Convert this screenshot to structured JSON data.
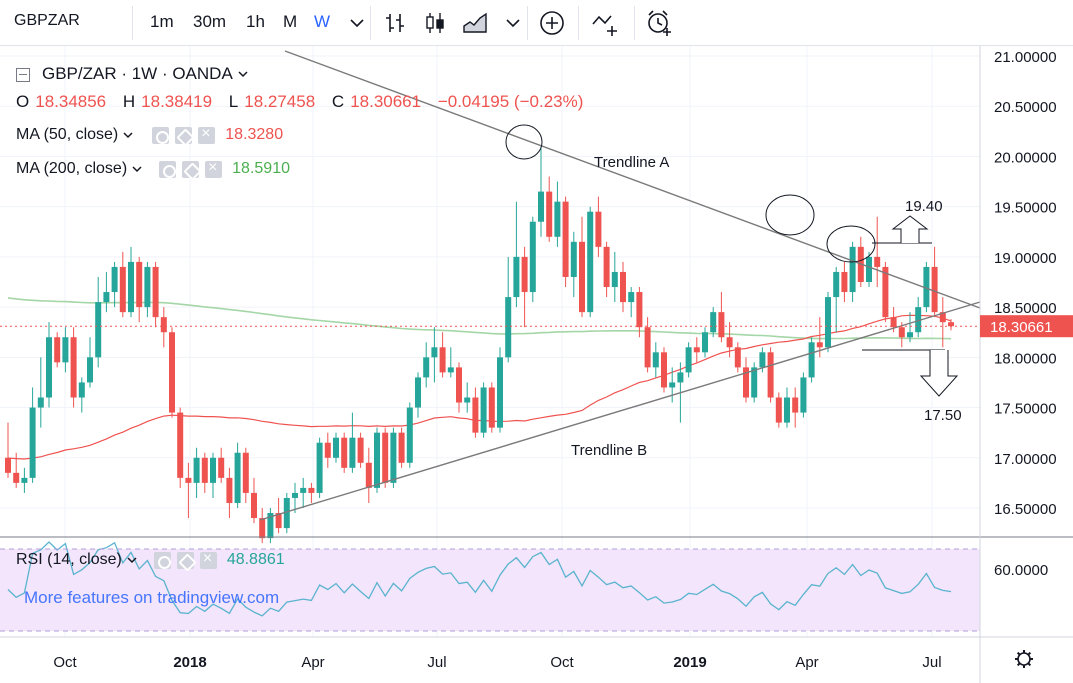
{
  "toolbar": {
    "symbol": "GBPZAR",
    "intervals": [
      "1m",
      "30m",
      "1h",
      "M",
      "W"
    ],
    "active_interval": "W"
  },
  "legend": {
    "title": "GBP/ZAR · 1W · OANDA",
    "open_label": "O",
    "open": "18.34856",
    "high_label": "H",
    "high": "18.38419",
    "low_label": "L",
    "low": "18.27458",
    "close_label": "C",
    "close": "18.30661",
    "change": "−0.04195 (−0.23%)",
    "ma50_label": "MA (50, close)",
    "ma50_value": "18.3280",
    "ma200_label": "MA (200, close)",
    "ma200_value": "18.5910",
    "rsi_label": "RSI (14, close)",
    "rsi_value": "48.8861"
  },
  "watermark": "More features on tradingview.com",
  "colors": {
    "up": "#26a69a",
    "down": "#ef5350",
    "ma50": "#ef5350",
    "ma200": "#a5d6a7",
    "rsi": "#5ab4cf",
    "rsi_band": "#f3e5fb",
    "trendline": "#7a7a7a"
  },
  "chart_data": {
    "type": "candlestick",
    "price_axis": {
      "ticks": [
        "21.00000",
        "20.50000",
        "20.00000",
        "19.50000",
        "19.00000",
        "18.50000",
        "18.00000",
        "17.50000",
        "17.00000",
        "16.50000"
      ],
      "last_price_label": "18.30661"
    },
    "rsi_axis": {
      "ticks": [
        "60.0000"
      ]
    },
    "time_axis": {
      "labels": [
        "Oct",
        "2018",
        "Apr",
        "Jul",
        "Oct",
        "2019",
        "Apr",
        "Jul"
      ]
    },
    "annotations": {
      "trendline_a": "Trendline A",
      "trendline_b": "Trendline B",
      "target_up": "19.40",
      "target_down": "17.50"
    },
    "candles": [
      [
        17.0,
        17.35,
        16.8,
        16.85
      ],
      [
        16.85,
        17.05,
        16.7,
        16.75
      ],
      [
        16.75,
        16.9,
        16.65,
        16.8
      ],
      [
        16.8,
        17.7,
        16.75,
        17.5
      ],
      [
        17.5,
        18.0,
        17.3,
        17.6
      ],
      [
        17.6,
        18.35,
        17.5,
        18.2
      ],
      [
        18.2,
        18.25,
        17.9,
        17.95
      ],
      [
        17.95,
        18.3,
        17.85,
        18.2
      ],
      [
        18.2,
        18.3,
        17.5,
        17.6
      ],
      [
        17.6,
        17.8,
        17.45,
        17.75
      ],
      [
        17.75,
        18.2,
        17.7,
        18.0
      ],
      [
        18.0,
        18.8,
        17.9,
        18.55
      ],
      [
        18.55,
        18.85,
        18.45,
        18.65
      ],
      [
        18.65,
        18.95,
        18.5,
        18.9
      ],
      [
        18.9,
        19.05,
        18.4,
        18.45
      ],
      [
        18.45,
        19.1,
        18.4,
        18.95
      ],
      [
        18.95,
        19.0,
        18.35,
        18.5
      ],
      [
        18.5,
        18.95,
        18.4,
        18.9
      ],
      [
        18.9,
        18.95,
        18.3,
        18.4
      ],
      [
        18.4,
        18.5,
        18.1,
        18.25
      ],
      [
        18.25,
        18.3,
        17.4,
        17.45
      ],
      [
        17.45,
        17.5,
        16.7,
        16.8
      ],
      [
        16.8,
        16.95,
        16.4,
        16.75
      ],
      [
        16.75,
        17.1,
        16.6,
        17.0
      ],
      [
        17.0,
        17.05,
        16.65,
        16.75
      ],
      [
        16.75,
        17.05,
        16.6,
        17.0
      ],
      [
        17.0,
        17.1,
        16.75,
        16.8
      ],
      [
        16.8,
        16.9,
        16.4,
        16.55
      ],
      [
        16.55,
        17.15,
        16.5,
        17.05
      ],
      [
        17.05,
        17.1,
        16.55,
        16.65
      ],
      [
        16.65,
        16.8,
        16.35,
        16.4
      ],
      [
        16.4,
        16.5,
        16.15,
        16.2
      ],
      [
        16.2,
        16.5,
        16.15,
        16.45
      ],
      [
        16.45,
        16.6,
        16.25,
        16.3
      ],
      [
        16.3,
        16.65,
        16.25,
        16.6
      ],
      [
        16.6,
        16.75,
        16.45,
        16.65
      ],
      [
        16.65,
        16.8,
        16.5,
        16.7
      ],
      [
        16.7,
        16.75,
        16.55,
        16.65
      ],
      [
        16.65,
        17.2,
        16.6,
        17.15
      ],
      [
        17.15,
        17.25,
        16.9,
        17.0
      ],
      [
        17.0,
        17.25,
        16.95,
        17.2
      ],
      [
        17.2,
        17.25,
        16.85,
        16.9
      ],
      [
        16.9,
        17.45,
        16.85,
        17.2
      ],
      [
        17.2,
        17.25,
        16.9,
        16.95
      ],
      [
        16.95,
        17.1,
        16.55,
        16.7
      ],
      [
        16.7,
        17.3,
        16.65,
        17.25
      ],
      [
        17.25,
        17.3,
        16.7,
        16.75
      ],
      [
        16.75,
        17.3,
        16.7,
        17.25
      ],
      [
        17.25,
        17.3,
        16.9,
        16.95
      ],
      [
        16.95,
        17.55,
        16.9,
        17.5
      ],
      [
        17.5,
        17.85,
        17.4,
        17.8
      ],
      [
        17.8,
        18.15,
        17.7,
        18.0
      ],
      [
        18.0,
        18.3,
        17.75,
        18.1
      ],
      [
        18.1,
        18.25,
        17.8,
        17.85
      ],
      [
        17.85,
        18.1,
        17.8,
        17.9
      ],
      [
        17.9,
        17.95,
        17.45,
        17.55
      ],
      [
        17.55,
        17.75,
        17.45,
        17.6
      ],
      [
        17.6,
        17.7,
        17.2,
        17.25
      ],
      [
        17.25,
        17.75,
        17.2,
        17.7
      ],
      [
        17.7,
        17.75,
        17.25,
        17.3
      ],
      [
        17.3,
        18.1,
        17.25,
        18.0
      ],
      [
        18.0,
        19.0,
        17.95,
        18.6
      ],
      [
        18.6,
        19.55,
        18.5,
        19.0
      ],
      [
        19.0,
        19.1,
        18.3,
        18.65
      ],
      [
        18.65,
        19.4,
        18.55,
        19.35
      ],
      [
        19.35,
        20.1,
        19.2,
        19.65
      ],
      [
        19.65,
        19.8,
        19.15,
        19.2
      ],
      [
        19.2,
        19.75,
        19.1,
        19.55
      ],
      [
        19.55,
        19.6,
        18.7,
        18.8
      ],
      [
        18.8,
        19.25,
        18.6,
        19.15
      ],
      [
        19.15,
        19.4,
        18.4,
        18.45
      ],
      [
        18.45,
        19.5,
        18.4,
        19.45
      ],
      [
        19.45,
        19.6,
        19.0,
        19.1
      ],
      [
        19.1,
        19.15,
        18.6,
        18.7
      ],
      [
        18.7,
        19.05,
        18.55,
        18.85
      ],
      [
        18.85,
        18.95,
        18.45,
        18.55
      ],
      [
        18.55,
        18.7,
        18.4,
        18.65
      ],
      [
        18.65,
        18.7,
        18.2,
        18.3
      ],
      [
        18.3,
        18.4,
        17.85,
        17.9
      ],
      [
        17.9,
        18.15,
        17.8,
        18.05
      ],
      [
        18.05,
        18.1,
        17.65,
        17.7
      ],
      [
        17.7,
        17.9,
        17.55,
        17.75
      ],
      [
        17.75,
        17.95,
        17.35,
        17.85
      ],
      [
        17.85,
        18.15,
        17.8,
        18.1
      ],
      [
        18.1,
        18.2,
        17.95,
        18.05
      ],
      [
        18.05,
        18.3,
        18.0,
        18.25
      ],
      [
        18.25,
        18.5,
        18.2,
        18.45
      ],
      [
        18.45,
        18.65,
        18.15,
        18.2
      ],
      [
        18.2,
        18.35,
        18.0,
        18.1
      ],
      [
        18.1,
        18.15,
        17.85,
        17.9
      ],
      [
        17.9,
        18.0,
        17.55,
        17.6
      ],
      [
        17.6,
        17.95,
        17.55,
        17.9
      ],
      [
        17.9,
        18.1,
        17.85,
        18.05
      ],
      [
        18.05,
        18.1,
        17.55,
        17.6
      ],
      [
        17.6,
        17.65,
        17.3,
        17.35
      ],
      [
        17.35,
        17.7,
        17.3,
        17.6
      ],
      [
        17.6,
        17.7,
        17.3,
        17.45
      ],
      [
        17.45,
        17.85,
        17.4,
        17.8
      ],
      [
        17.8,
        18.2,
        17.75,
        18.15
      ],
      [
        18.15,
        18.4,
        18.0,
        18.1
      ],
      [
        18.1,
        18.65,
        18.05,
        18.6
      ],
      [
        18.6,
        18.9,
        18.25,
        18.85
      ],
      [
        18.85,
        18.95,
        18.55,
        18.65
      ],
      [
        18.65,
        19.15,
        18.55,
        19.1
      ],
      [
        19.1,
        19.2,
        18.7,
        18.75
      ],
      [
        18.75,
        19.05,
        18.7,
        19.0
      ],
      [
        19.0,
        19.4,
        18.7,
        18.9
      ],
      [
        18.9,
        18.95,
        18.35,
        18.4
      ],
      [
        18.4,
        18.5,
        18.25,
        18.3
      ],
      [
        18.3,
        18.35,
        18.1,
        18.2
      ],
      [
        18.2,
        18.45,
        18.15,
        18.25
      ],
      [
        18.25,
        18.6,
        18.2,
        18.5
      ],
      [
        18.5,
        18.95,
        18.45,
        18.9
      ],
      [
        18.9,
        19.1,
        18.4,
        18.45
      ],
      [
        18.45,
        18.6,
        18.1,
        18.35
      ],
      [
        18.35,
        18.38,
        18.27,
        18.31
      ]
    ]
  }
}
